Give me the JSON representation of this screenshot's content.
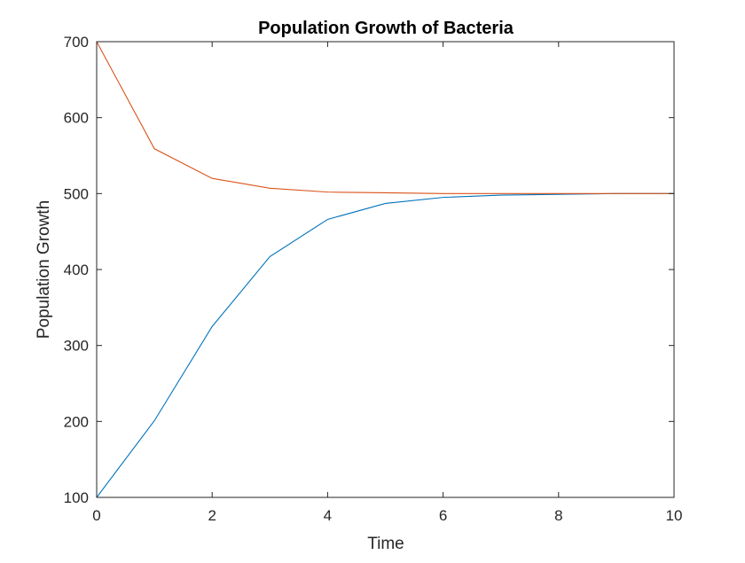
{
  "chart_data": {
    "type": "line",
    "title": "Population Growth of Bacteria",
    "xlabel": "Time",
    "ylabel": "Population Growth",
    "xlim": [
      0,
      10
    ],
    "ylim": [
      100,
      700
    ],
    "xticks": [
      0,
      2,
      4,
      6,
      8,
      10
    ],
    "yticks": [
      100,
      200,
      300,
      400,
      500,
      600,
      700
    ],
    "grid": false,
    "x": [
      0,
      1,
      2,
      3,
      4,
      5,
      6,
      7,
      8,
      9,
      10
    ],
    "series": [
      {
        "color": "#0072BD",
        "values": [
          100,
          201,
          325,
          417,
          466,
          487,
          495,
          498,
          499,
          500,
          500
        ]
      },
      {
        "color": "#D95319",
        "values": [
          700,
          559,
          520,
          507,
          502,
          501,
          500,
          500,
          500,
          500,
          500
        ]
      }
    ]
  }
}
